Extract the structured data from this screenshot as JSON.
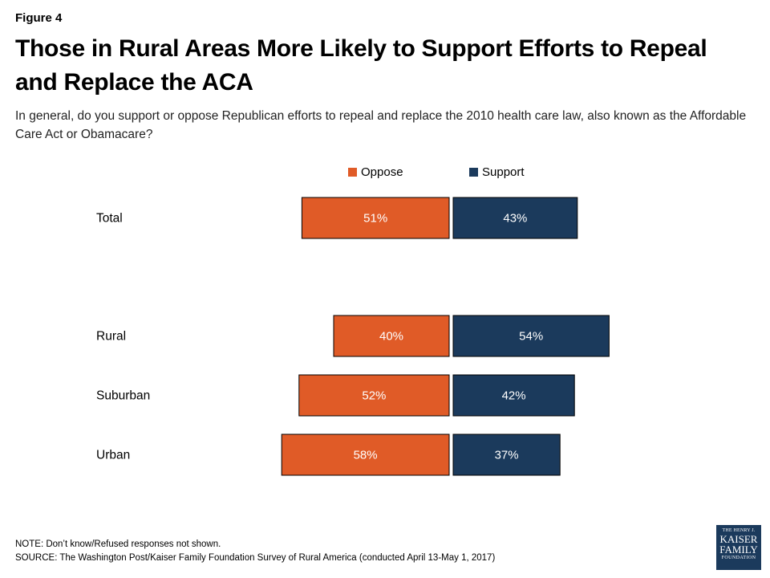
{
  "figure_label": "Figure 4",
  "title": "Those in Rural Areas More Likely to Support Efforts to Repeal and Replace the ACA",
  "subtitle": "In general, do you support or oppose Republican efforts to repeal and replace the 2010 health care law, also known as the Affordable Care Act or Obamacare?",
  "notes": {
    "note": "NOTE: Don’t know/Refused responses not shown.",
    "source": "SOURCE: The Washington Post/Kaiser Family Foundation Survey of Rural America (conducted April 13-May 1, 2017)"
  },
  "logo": {
    "line1": "THE HENRY J.",
    "line2": "KAISER",
    "line3": "FAMILY",
    "line4": "FOUNDATION"
  },
  "colors": {
    "oppose": "#e05b27",
    "support": "#1b3a5c"
  },
  "chart_data": {
    "type": "bar",
    "orientation": "horizontal-diverging",
    "categories": [
      "Total",
      "Rural",
      "Suburban",
      "Urban"
    ],
    "series": [
      {
        "name": "Oppose",
        "values": [
          51,
          40,
          52,
          58
        ],
        "labels": [
          "51%",
          "40%",
          "52%",
          "58%"
        ]
      },
      {
        "name": "Support",
        "values": [
          43,
          54,
          42,
          37
        ],
        "labels": [
          "43%",
          "54%",
          "42%",
          "37%"
        ]
      }
    ],
    "legend_position": "top",
    "grid": false,
    "unit": "%"
  }
}
